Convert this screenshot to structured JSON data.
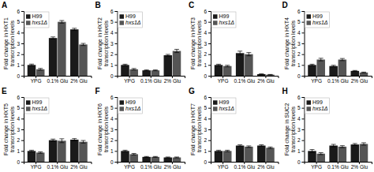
{
  "chart_data": [
    {
      "type": "bar",
      "title": "A",
      "y_label": "Fold change in HXT1\ntranscription levels",
      "categories": [
        "YPG",
        "0.1% Glu",
        "2% Glu"
      ],
      "series": [
        {
          "name": "H99",
          "color": "#1a1a1a",
          "values": [
            1.0,
            3.5,
            4.3
          ],
          "errors": [
            0.08,
            0.1,
            0.1
          ]
        },
        {
          "name": "hxs1Δ",
          "color": "#555555",
          "values": [
            0.6,
            5.0,
            2.9
          ],
          "errors": [
            0.08,
            0.12,
            0.1
          ]
        }
      ],
      "ylim": [
        0,
        6
      ],
      "yticks": [
        0,
        1,
        2,
        3,
        4,
        5,
        6
      ],
      "grid": false,
      "legend": "upper left"
    },
    {
      "type": "bar",
      "title": "B",
      "y_label": "Fold change in HXT2\ntranscription levels",
      "categories": [
        "YPG",
        "0.1% Glu",
        "2% Glu"
      ],
      "series": [
        {
          "name": "H99",
          "color": "#1a1a1a",
          "values": [
            1.0,
            0.5,
            1.9
          ],
          "errors": [
            0.07,
            0.04,
            0.08
          ]
        },
        {
          "name": "hxs1Δ",
          "color": "#555555",
          "values": [
            0.6,
            0.5,
            2.3
          ],
          "errors": [
            0.07,
            0.04,
            0.15
          ]
        }
      ],
      "ylim": [
        0,
        6
      ],
      "yticks": [
        0,
        1,
        2,
        3,
        4,
        5,
        6
      ],
      "grid": false,
      "legend": "upper left"
    },
    {
      "type": "bar",
      "title": "C",
      "y_label": "Fold change in HXT3\ntranscription levels",
      "categories": [
        "YPG",
        "0.1% Glu",
        "2% Glu"
      ],
      "series": [
        {
          "name": "H99",
          "color": "#1a1a1a",
          "values": [
            1.0,
            2.1,
            0.15
          ],
          "errors": [
            0.07,
            0.18,
            0.02
          ]
        },
        {
          "name": "hxs1Δ",
          "color": "#555555",
          "values": [
            0.9,
            2.0,
            0.1
          ],
          "errors": [
            0.07,
            0.15,
            0.02
          ]
        }
      ],
      "ylim": [
        0,
        6
      ],
      "yticks": [
        0,
        1,
        2,
        3,
        4,
        5,
        6
      ],
      "grid": false,
      "legend": "upper left"
    },
    {
      "type": "bar",
      "title": "D",
      "y_label": "Fold change in HXT4\ntranscription levels",
      "categories": [
        "YPG",
        "0.1% Glu",
        "2% Glu"
      ],
      "series": [
        {
          "name": "H99",
          "color": "#1a1a1a",
          "values": [
            1.0,
            0.9,
            0.45
          ],
          "errors": [
            0.07,
            0.07,
            0.04
          ]
        },
        {
          "name": "hxs1Δ",
          "color": "#555555",
          "values": [
            1.5,
            1.5,
            0.3
          ],
          "errors": [
            0.12,
            0.1,
            0.04
          ]
        }
      ],
      "ylim": [
        0,
        6
      ],
      "yticks": [
        0,
        1,
        2,
        3,
        4,
        5,
        6
      ],
      "grid": false,
      "legend": "upper left"
    },
    {
      "type": "bar",
      "title": "E",
      "y_label": "Fold change in HXT5\ntranscription levels",
      "categories": [
        "YPG",
        "0.1% Glu",
        "2% Glu"
      ],
      "series": [
        {
          "name": "H99",
          "color": "#1a1a1a",
          "values": [
            1.0,
            2.0,
            2.05
          ],
          "errors": [
            0.07,
            0.1,
            0.1
          ]
        },
        {
          "name": "hxs1Δ",
          "color": "#555555",
          "values": [
            0.85,
            1.95,
            1.85
          ],
          "errors": [
            0.07,
            0.18,
            0.12
          ]
        }
      ],
      "ylim": [
        0,
        6
      ],
      "yticks": [
        0,
        1,
        2,
        3,
        4,
        5,
        6
      ],
      "grid": false,
      "legend": "upper left"
    },
    {
      "type": "bar",
      "title": "F",
      "y_label": "Fold change in HXT6\ntranscription levels",
      "categories": [
        "YPG",
        "0.1% Glu",
        "2% Glu"
      ],
      "series": [
        {
          "name": "H99",
          "color": "#1a1a1a",
          "values": [
            1.0,
            0.45,
            0.4
          ],
          "errors": [
            0.07,
            0.04,
            0.04
          ]
        },
        {
          "name": "hxs1Δ",
          "color": "#555555",
          "values": [
            0.7,
            0.45,
            0.4
          ],
          "errors": [
            0.07,
            0.04,
            0.04
          ]
        }
      ],
      "ylim": [
        0,
        6
      ],
      "yticks": [
        0,
        1,
        2,
        3,
        4,
        5,
        6
      ],
      "grid": false,
      "legend": "upper left"
    },
    {
      "type": "bar",
      "title": "G",
      "y_label": "Fold change in HXT7\ntranscription levels",
      "categories": [
        "YPG",
        "0.1% Glu",
        "2% Glu"
      ],
      "series": [
        {
          "name": "H99",
          "color": "#1a1a1a",
          "values": [
            1.0,
            1.5,
            1.5
          ],
          "errors": [
            0.07,
            0.07,
            0.07
          ]
        },
        {
          "name": "hxs1Δ",
          "color": "#555555",
          "values": [
            1.0,
            1.4,
            1.3
          ],
          "errors": [
            0.07,
            0.07,
            0.07
          ]
        }
      ],
      "ylim": [
        0,
        6
      ],
      "yticks": [
        0,
        1,
        2,
        3,
        4,
        5,
        6
      ],
      "grid": false,
      "legend": "upper left"
    },
    {
      "type": "bar",
      "title": "H",
      "y_label": "Fold change in SUC2\ntranscription levels",
      "categories": [
        "YPG",
        "0.1% Glu",
        "2% Glu"
      ],
      "series": [
        {
          "name": "H99",
          "color": "#1a1a1a",
          "values": [
            1.0,
            1.5,
            1.6
          ],
          "errors": [
            0.13,
            0.11,
            0.09
          ]
        },
        {
          "name": "hxs1Δ",
          "color": "#555555",
          "values": [
            0.75,
            1.4,
            1.65
          ],
          "errors": [
            0.09,
            0.09,
            0.11
          ]
        }
      ],
      "ylim": [
        0,
        6
      ],
      "yticks": [
        0,
        1,
        2,
        3,
        4,
        5,
        6
      ],
      "grid": false,
      "legend": "upper left"
    }
  ]
}
